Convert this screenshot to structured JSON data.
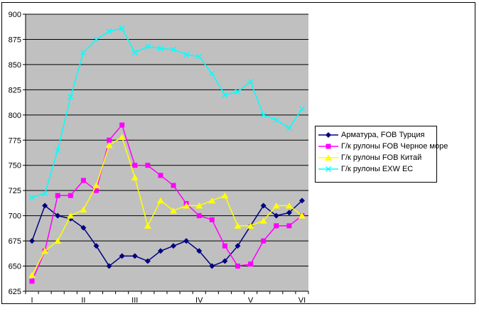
{
  "chart_data": {
    "type": "line",
    "title": "",
    "xlabel": "",
    "ylabel": "",
    "ylim": [
      625,
      900
    ],
    "y_step": 25,
    "grid": true,
    "plot_bg_color": "#c0c0c0",
    "grid_color": "#000000",
    "axis_color": "#000000",
    "legend_position": "right",
    "n_points": 22,
    "x_tick_labels": [
      {
        "label": "I",
        "index": 0
      },
      {
        "label": "II",
        "index": 4
      },
      {
        "label": "III",
        "index": 8
      },
      {
        "label": "IV",
        "index": 13
      },
      {
        "label": "V",
        "index": 17
      },
      {
        "label": "VI",
        "index": 21
      }
    ],
    "series": [
      {
        "name": "Арматура, FOB Турция",
        "color": "#000080",
        "marker": "diamond",
        "values": [
          675,
          710,
          700,
          697,
          688,
          670,
          650,
          660,
          660,
          655,
          665,
          670,
          675,
          665,
          650,
          655,
          670,
          690,
          710,
          700,
          703,
          715
        ]
      },
      {
        "name": "Г/к рулоны FOB Черное море",
        "color": "#ff00ff",
        "marker": "square",
        "values": [
          635,
          665,
          720,
          720,
          735,
          725,
          775,
          790,
          750,
          750,
          740,
          730,
          712,
          700,
          696,
          670,
          650,
          652,
          675,
          690,
          690,
          700
        ]
      },
      {
        "name": "Г/к рулоны FOB Китай",
        "color": "#ffff00",
        "marker": "triangle",
        "values": [
          641,
          665,
          675,
          700,
          706,
          730,
          770,
          778,
          738,
          690,
          715,
          705,
          710,
          710,
          715,
          720,
          690,
          690,
          695,
          710,
          710,
          700
        ]
      },
      {
        "name": "Г/к рулоны EXW ЕС",
        "color": "#00ffff",
        "marker": "x",
        "values": [
          718,
          722,
          765,
          818,
          862,
          875,
          883,
          886,
          862,
          868,
          866,
          865,
          860,
          858,
          841,
          820,
          823,
          833,
          800,
          795,
          787,
          806
        ]
      }
    ]
  }
}
